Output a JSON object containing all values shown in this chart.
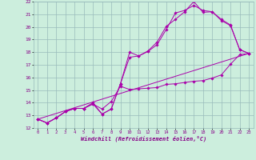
{
  "xlabel": "Windchill (Refroidissement éolien,°C)",
  "background_color": "#cceedd",
  "grid_color": "#99bbbb",
  "line_color": "#aa00aa",
  "xlim": [
    -0.5,
    23.5
  ],
  "ylim": [
    12,
    22
  ],
  "xticks": [
    0,
    1,
    2,
    3,
    4,
    5,
    6,
    7,
    8,
    9,
    10,
    11,
    12,
    13,
    14,
    15,
    16,
    17,
    18,
    19,
    20,
    21,
    22,
    23
  ],
  "yticks": [
    12,
    13,
    14,
    15,
    16,
    17,
    18,
    19,
    20,
    21,
    22
  ],
  "lines": [
    {
      "x": [
        0,
        1,
        2,
        3,
        4,
        5,
        5,
        6,
        7,
        8,
        9,
        10,
        11,
        12,
        13,
        14,
        15,
        16,
        17,
        18,
        19,
        20,
        21,
        22,
        23
      ],
      "y": [
        12.7,
        12.4,
        12.8,
        13.3,
        13.55,
        13.55,
        13.55,
        13.9,
        13.5,
        14.1,
        15.3,
        15.05,
        15.1,
        15.15,
        15.2,
        15.45,
        15.5,
        15.6,
        15.7,
        15.75,
        15.95,
        16.2,
        17.05,
        17.8,
        17.9
      ],
      "marker": true
    },
    {
      "x": [
        0,
        1,
        2,
        3,
        4,
        5,
        6,
        7,
        8,
        9,
        10,
        11,
        12,
        13,
        14,
        15,
        16,
        17,
        18,
        19,
        20,
        21,
        22,
        23
      ],
      "y": [
        12.7,
        12.4,
        12.8,
        13.3,
        13.55,
        13.55,
        14.0,
        13.1,
        13.5,
        15.5,
        17.6,
        17.7,
        18.05,
        18.6,
        19.8,
        21.1,
        21.3,
        21.7,
        21.3,
        21.2,
        20.5,
        20.1,
        18.2,
        17.9
      ],
      "marker": true
    },
    {
      "x": [
        0,
        1,
        2,
        3,
        4,
        5,
        6,
        7,
        8,
        9,
        10,
        11,
        12,
        13,
        14,
        15,
        16,
        17,
        18,
        19,
        20,
        21,
        22,
        23
      ],
      "y": [
        12.7,
        12.4,
        12.8,
        13.3,
        13.55,
        13.55,
        13.9,
        13.1,
        13.5,
        15.5,
        18.0,
        17.7,
        18.1,
        18.8,
        20.05,
        20.6,
        21.2,
        22.0,
        21.15,
        21.2,
        20.6,
        20.15,
        18.2,
        17.9
      ],
      "marker": true
    },
    {
      "x": [
        0,
        23
      ],
      "y": [
        12.7,
        17.9
      ],
      "marker": false
    }
  ]
}
